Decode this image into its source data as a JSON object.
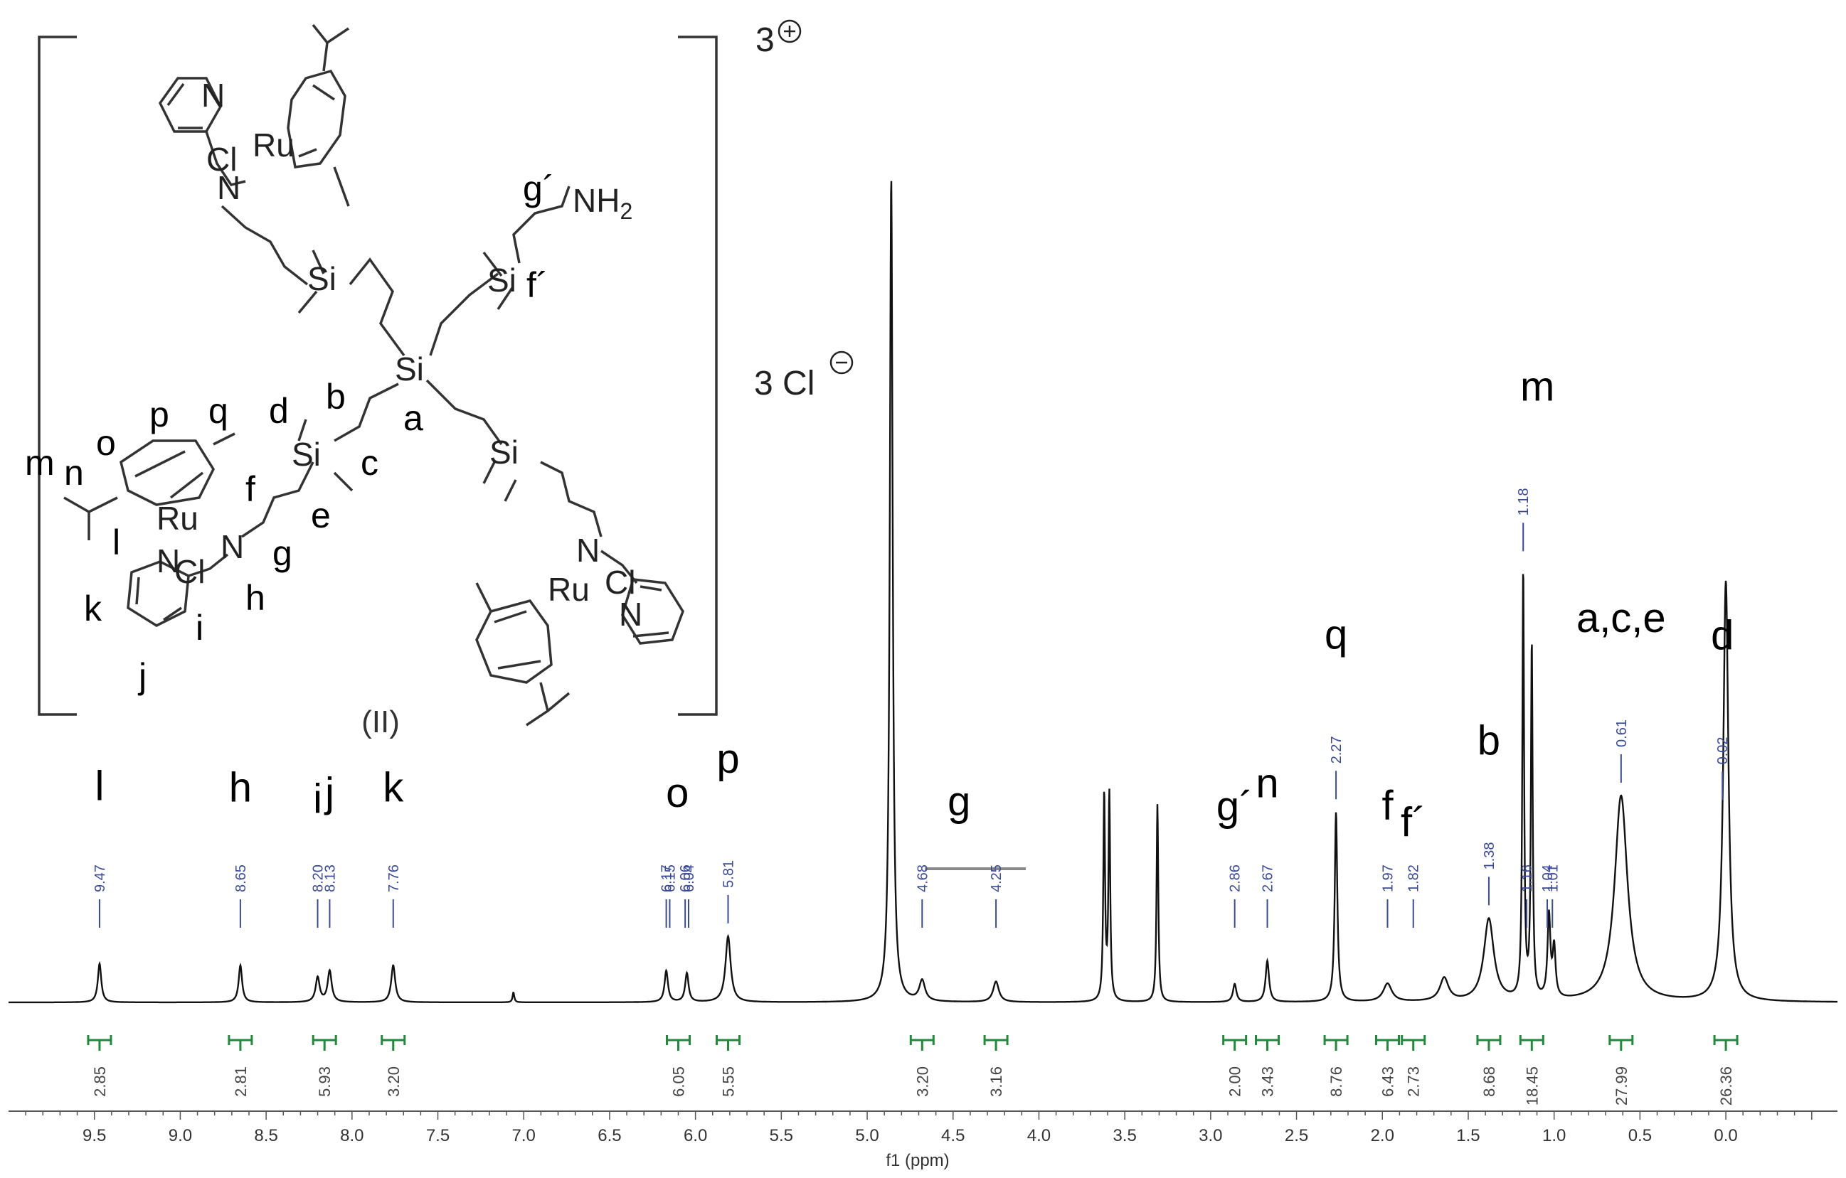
{
  "chart_data": {
    "type": "line",
    "xlabel": "f1 (ppm)",
    "xlim": [
      10.0,
      -0.65
    ],
    "x_reversed": true,
    "x_ticks": [
      "9.5",
      "9.0",
      "8.5",
      "8.0",
      "7.5",
      "7.0",
      "6.5",
      "6.0",
      "5.5",
      "5.0",
      "4.5",
      "4.0",
      "3.5",
      "3.0",
      "2.5",
      "2.0",
      "1.5",
      "1.0",
      "0.5",
      "0.0"
    ],
    "peaks": [
      {
        "ppm": 9.47,
        "height": 0.047,
        "width": 0.012
      },
      {
        "ppm": 8.65,
        "height": 0.045,
        "width": 0.012
      },
      {
        "ppm": 8.2,
        "height": 0.03,
        "width": 0.014
      },
      {
        "ppm": 8.13,
        "height": 0.038,
        "width": 0.014
      },
      {
        "ppm": 7.76,
        "height": 0.045,
        "width": 0.014
      },
      {
        "ppm": 7.06,
        "height": 0.012,
        "width": 0.006
      },
      {
        "ppm": 6.17,
        "height": 0.038,
        "width": 0.012
      },
      {
        "ppm": 6.05,
        "height": 0.035,
        "width": 0.012
      },
      {
        "ppm": 5.81,
        "height": 0.08,
        "width": 0.018
      },
      {
        "ppm": 4.86,
        "height": 1.0,
        "width": 0.01
      },
      {
        "ppm": 4.68,
        "height": 0.025,
        "width": 0.02
      },
      {
        "ppm": 4.25,
        "height": 0.025,
        "width": 0.02
      },
      {
        "ppm": 3.62,
        "height": 0.25,
        "width": 0.006
      },
      {
        "ppm": 3.59,
        "height": 0.25,
        "width": 0.006
      },
      {
        "ppm": 3.31,
        "height": 0.24,
        "width": 0.006
      },
      {
        "ppm": 2.86,
        "height": 0.022,
        "width": 0.012
      },
      {
        "ppm": 2.67,
        "height": 0.05,
        "width": 0.012
      },
      {
        "ppm": 2.27,
        "height": 0.23,
        "width": 0.009
      },
      {
        "ppm": 1.97,
        "height": 0.022,
        "width": 0.03
      },
      {
        "ppm": 1.64,
        "height": 0.028,
        "width": 0.03
      },
      {
        "ppm": 1.38,
        "height": 0.1,
        "width": 0.035
      },
      {
        "ppm": 1.18,
        "height": 0.52,
        "width": 0.006
      },
      {
        "ppm": 1.13,
        "height": 0.43,
        "width": 0.006
      },
      {
        "ppm": 1.03,
        "height": 0.1,
        "width": 0.01
      },
      {
        "ppm": 1.0,
        "height": 0.06,
        "width": 0.01
      },
      {
        "ppm": 0.61,
        "height": 0.25,
        "width": 0.045
      },
      {
        "ppm": 0.0,
        "height": 0.51,
        "width": 0.018
      }
    ],
    "peak_labels": [
      {
        "letter": "l",
        "ppm_labels": [
          "9.47"
        ]
      },
      {
        "letter": "h",
        "ppm_labels": [
          "8.65"
        ]
      },
      {
        "letter": "i",
        "ppm_labels": [
          "8.20"
        ]
      },
      {
        "letter": "j",
        "ppm_labels": [
          "8.13"
        ]
      },
      {
        "letter": "k",
        "ppm_labels": [
          "7.76"
        ]
      },
      {
        "letter": "o",
        "ppm_labels": [
          "6.17",
          "6.15",
          "6.06",
          "6.04"
        ]
      },
      {
        "letter": "p",
        "ppm_labels": [
          "5.81"
        ]
      },
      {
        "letter": "g",
        "ppm_labels": [
          "4.68",
          "4.25"
        ]
      },
      {
        "letter": "g´",
        "ppm_labels": [
          "2.86"
        ]
      },
      {
        "letter": "n",
        "ppm_labels": [
          "2.67"
        ]
      },
      {
        "letter": "q",
        "ppm_labels": [
          "2.27"
        ]
      },
      {
        "letter": "f",
        "ppm_labels": [
          "1.97"
        ]
      },
      {
        "letter": "f´",
        "ppm_labels": [
          "1.82"
        ]
      },
      {
        "letter": "b",
        "ppm_labels": [
          "1.38"
        ]
      },
      {
        "letter": "m",
        "ppm_labels": [
          "1.18",
          "1.16",
          "1.04",
          "1.01"
        ]
      },
      {
        "letter": "a,c,e",
        "ppm_labels": [
          "0.61"
        ]
      },
      {
        "letter": "d",
        "ppm_labels": [
          "0.02"
        ]
      }
    ],
    "integrals": [
      {
        "ppm": 9.47,
        "value": "2.85"
      },
      {
        "ppm": 8.65,
        "value": "2.81"
      },
      {
        "ppm": 8.16,
        "value": "5.93"
      },
      {
        "ppm": 7.76,
        "value": "3.20"
      },
      {
        "ppm": 6.1,
        "value": "6.05"
      },
      {
        "ppm": 5.81,
        "value": "5.55"
      },
      {
        "ppm": 4.68,
        "value": "3.20"
      },
      {
        "ppm": 4.25,
        "value": "3.16"
      },
      {
        "ppm": 2.86,
        "value": "2.00"
      },
      {
        "ppm": 2.67,
        "value": "3.43"
      },
      {
        "ppm": 2.27,
        "value": "8.76"
      },
      {
        "ppm": 1.97,
        "value": "6.43"
      },
      {
        "ppm": 1.82,
        "value": "2.73"
      },
      {
        "ppm": 1.38,
        "value": "8.68"
      },
      {
        "ppm": 1.13,
        "value": "18.45"
      },
      {
        "ppm": 0.61,
        "value": "27.99"
      },
      {
        "ppm": 0.0,
        "value": "26.36"
      }
    ]
  },
  "structure": {
    "compound_label": "(II)",
    "charge": "3",
    "counterion": "3 Cl",
    "atoms": {
      "ru": "Ru",
      "cl": "Cl",
      "n": "N",
      "si": "Si",
      "nh2": "NH"
    },
    "letters": [
      "a",
      "b",
      "c",
      "d",
      "e",
      "f",
      "g",
      "h",
      "i",
      "j",
      "k",
      "l",
      "m",
      "n",
      "o",
      "p",
      "q",
      "g´",
      "f´"
    ]
  }
}
